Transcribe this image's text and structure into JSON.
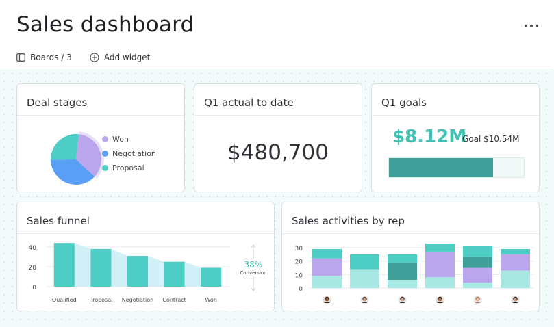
{
  "header": {
    "title": "Sales dashboard",
    "toolbar": {
      "boards_label": "Boards / 3",
      "add_widget_label": "Add widget"
    }
  },
  "widgets": {
    "deal_stages": {
      "title": "Deal stages",
      "legend": [
        {
          "label": "Won",
          "color": "#b9a6ec"
        },
        {
          "label": "Negotiation",
          "color": "#5b9ef5"
        },
        {
          "label": "Proposal",
          "color": "#4ecdc4"
        }
      ]
    },
    "q1_actual": {
      "title": "Q1 actual to date",
      "value": "$480,700"
    },
    "q1_goals": {
      "title": "Q1 goals",
      "value": "$8.12M",
      "goal_label": "Goal $10.54M",
      "progress_fraction": 0.77,
      "colors": {
        "value": "#3fc2b3",
        "fill": "#3f9f99"
      }
    },
    "sales_funnel": {
      "title": "Sales funnel",
      "conversion_value": "38%",
      "conversion_label": "Conversion"
    },
    "sales_activities": {
      "title": "Sales activities by rep"
    }
  },
  "chart_data": [
    {
      "type": "pie",
      "categories": [
        "Won",
        "Negotiation",
        "Proposal"
      ],
      "values": [
        35,
        38,
        27
      ],
      "colors": [
        "#b9a6ec",
        "#5b9ef5",
        "#4ecdc4"
      ]
    },
    {
      "type": "bar",
      "categories": [
        "Qualified",
        "Proposal",
        "Negotiation",
        "Contract",
        "Won"
      ],
      "values": [
        44,
        38,
        31,
        25,
        19
      ],
      "ylim": [
        0,
        40
      ],
      "yticks": [
        0,
        20,
        40
      ],
      "colors": {
        "bar": "#4ecdc4",
        "area": "#d2f0f7"
      }
    },
    {
      "type": "bar",
      "stacked": true,
      "categories": [
        "rep-1",
        "rep-2",
        "rep-3",
        "rep-4",
        "rep-5",
        "rep-6"
      ],
      "yticks": [
        0,
        10,
        20,
        30
      ],
      "ylim": [
        0,
        30
      ],
      "series": [
        {
          "values": [
            9,
            14,
            6,
            8,
            4,
            13
          ],
          "color": "#a8e8e3"
        },
        {
          "values": [
            13,
            0,
            0,
            19,
            11,
            12
          ],
          "color": "#b9a6ec"
        },
        {
          "values": [
            0,
            0,
            13,
            0,
            8,
            0
          ],
          "color": "#3f9f99"
        },
        {
          "values": [
            7,
            11,
            6,
            6,
            8,
            4
          ],
          "color": "#4ecdc4"
        }
      ],
      "rep_colors": [
        {
          "skin": "#8a5a3b",
          "hair": "#2a1a12",
          "bg": "#e8e1da"
        },
        {
          "skin": "#c99a7a",
          "hair": "#4a3428",
          "bg": "#e4e4e8"
        },
        {
          "skin": "#d3a98c",
          "hair": "#3a2b22",
          "bg": "#dfe3e8"
        },
        {
          "skin": "#b07a5a",
          "hair": "#1e1410",
          "bg": "#eadfd6"
        },
        {
          "skin": "#e4b79c",
          "hair": "#a87350",
          "bg": "#e8e8ec"
        },
        {
          "skin": "#c49478",
          "hair": "#2b1d15",
          "bg": "#e2e2e6"
        }
      ]
    }
  ]
}
